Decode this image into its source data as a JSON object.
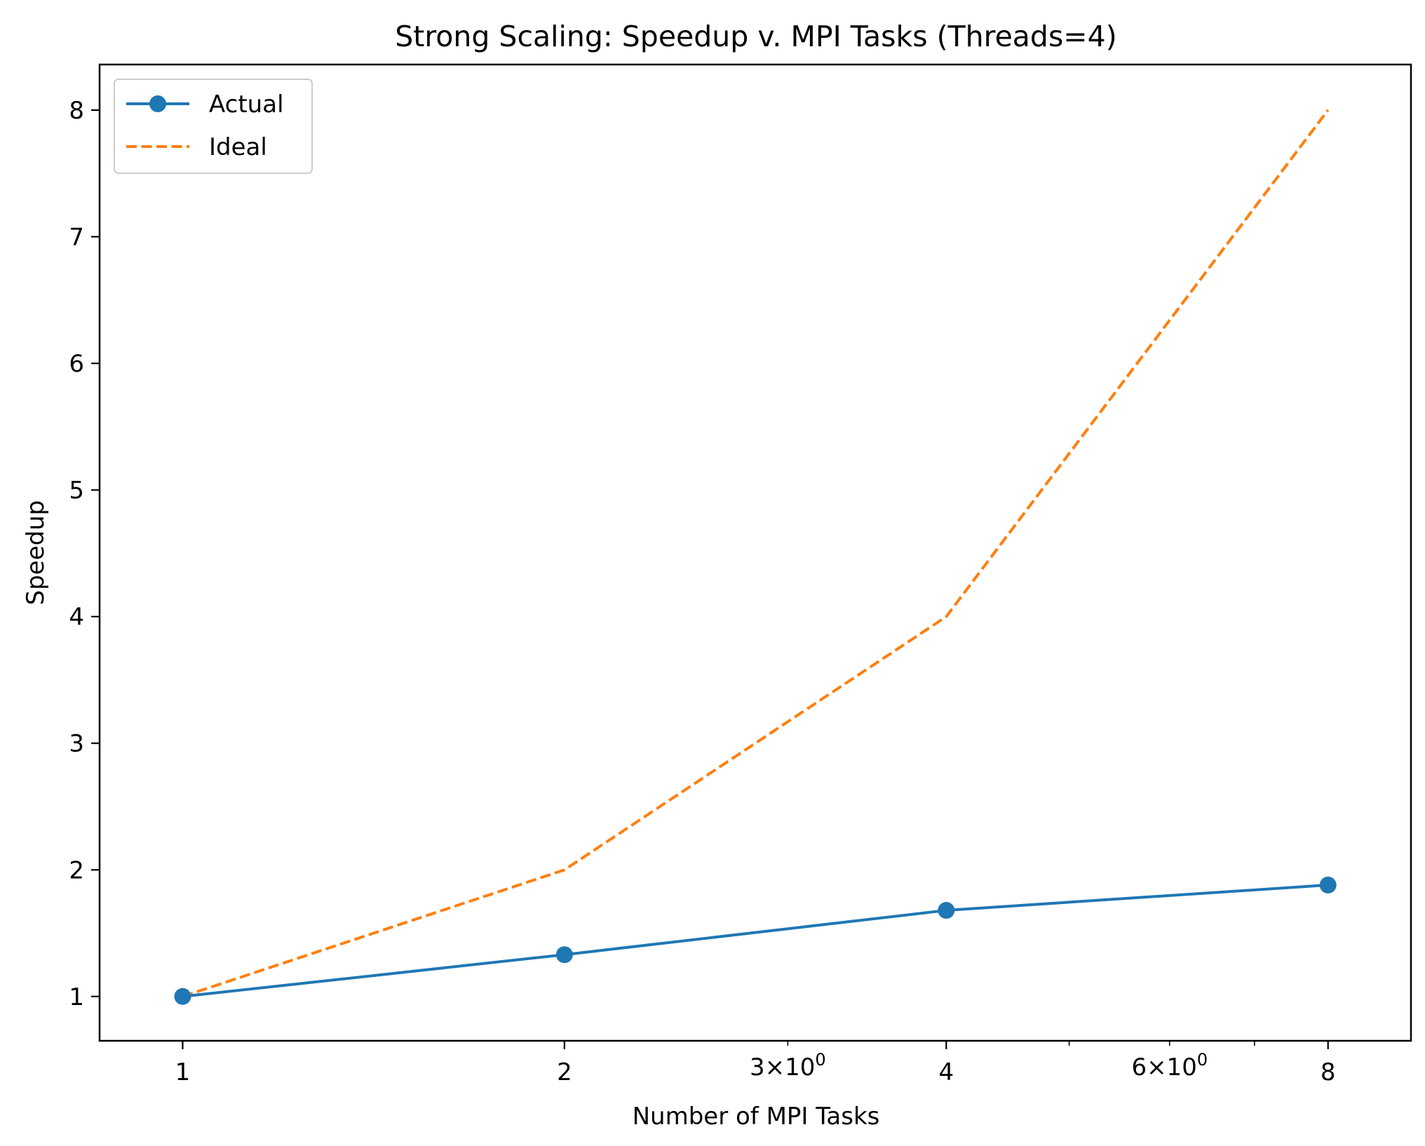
{
  "chart_data": {
    "type": "line",
    "title": "Strong Scaling: Speedup v. MPI Tasks (Threads=4)",
    "xlabel": "Number of MPI Tasks",
    "ylabel": "Speedup",
    "xscale": "log",
    "xlim": [
      0.86,
      9.3
    ],
    "ylim": [
      0.65,
      8.36
    ],
    "x_major_ticks": [
      {
        "value": 1,
        "label": "1"
      },
      {
        "value": 2,
        "label": "2"
      },
      {
        "value": 4,
        "label": "4"
      },
      {
        "value": 8,
        "label": "8"
      }
    ],
    "x_minor_ticks": [
      {
        "value": 3,
        "mantissa": "3",
        "base": "10",
        "exp": "0"
      },
      {
        "value": 5,
        "mantissa": "",
        "base": "",
        "exp": ""
      },
      {
        "value": 6,
        "mantissa": "6",
        "base": "10",
        "exp": "0"
      },
      {
        "value": 7,
        "mantissa": "",
        "base": "",
        "exp": ""
      }
    ],
    "y_ticks": [
      1,
      2,
      3,
      4,
      5,
      6,
      7,
      8
    ],
    "grid": false,
    "legend_position": "top-left",
    "series": [
      {
        "name": "Actual",
        "color": "#1f77b4",
        "style": "solid",
        "marker": "circle",
        "x": [
          1,
          2,
          4,
          8
        ],
        "y": [
          1.0,
          1.33,
          1.68,
          1.88
        ]
      },
      {
        "name": "Ideal",
        "color": "#ff7f0e",
        "style": "dashed",
        "marker": "none",
        "x": [
          1,
          2,
          4,
          8
        ],
        "y": [
          1,
          2,
          4,
          8
        ]
      }
    ]
  }
}
